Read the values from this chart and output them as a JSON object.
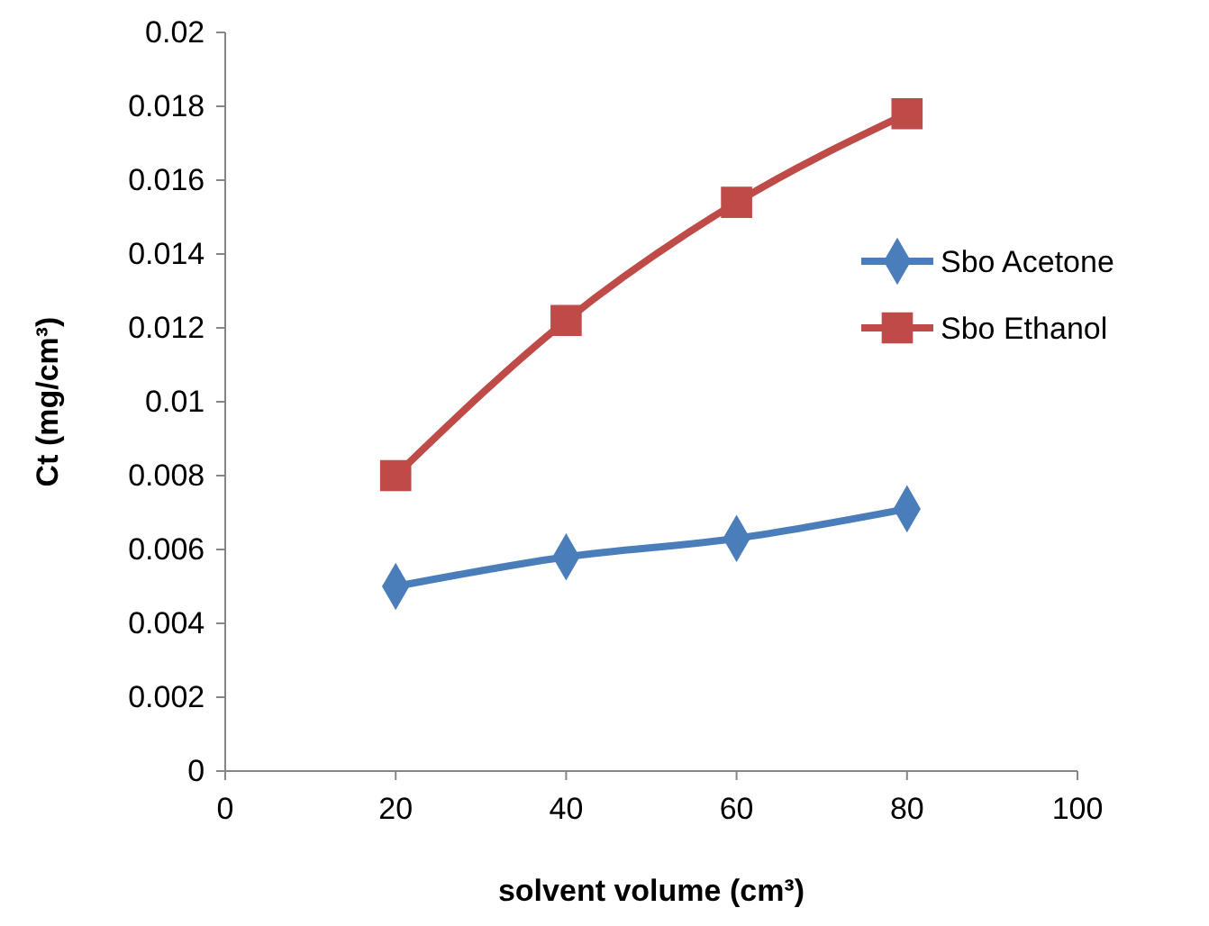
{
  "chart_data": {
    "type": "line",
    "xlabel": "solvent volume (cm³)",
    "ylabel": "Ct (mg/cm³)",
    "x": [
      20,
      40,
      60,
      80
    ],
    "series": [
      {
        "name": "Sbo Acetone",
        "color": "#4a7ebb",
        "marker": "diamond",
        "values": [
          0.005,
          0.0058,
          0.0063,
          0.0071
        ]
      },
      {
        "name": "Sbo Ethanol",
        "color": "#be4b48",
        "marker": "square",
        "values": [
          0.008,
          0.0122,
          0.0154,
          0.0178
        ]
      }
    ],
    "xlim": [
      0,
      100
    ],
    "xticks": [
      0,
      20,
      40,
      60,
      80,
      100
    ],
    "ylim": [
      0,
      0.02
    ],
    "yticks": [
      0,
      0.002,
      0.004,
      0.006,
      0.008,
      0.01,
      0.012,
      0.014,
      0.016,
      0.018,
      0.02
    ],
    "grid": false,
    "legend": "right",
    "line_style": "solid"
  }
}
